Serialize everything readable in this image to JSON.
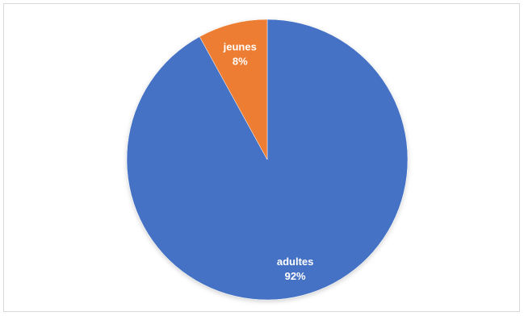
{
  "chart_data": {
    "type": "pie",
    "categories": [
      "adultes",
      "jeunes"
    ],
    "values": [
      92,
      8
    ],
    "percent_labels": [
      "92%",
      "8%"
    ],
    "colors": [
      "#4472C4",
      "#ED7D31"
    ],
    "start_angle_deg": 0,
    "direction": "clockwise",
    "legend": "none",
    "title": ""
  }
}
